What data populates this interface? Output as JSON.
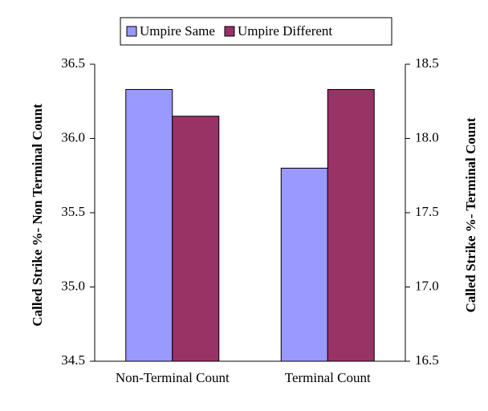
{
  "chart_data": {
    "type": "bar",
    "categories": [
      "Non-Terminal Count",
      "Terminal Count"
    ],
    "category_axes": [
      "y",
      "y2"
    ],
    "series": [
      {
        "name": "Umpire Same",
        "color": "#9999ff",
        "values": [
          36.33,
          17.8
        ]
      },
      {
        "name": "Umpire Different",
        "color": "#993366",
        "values": [
          36.15,
          18.33
        ]
      }
    ],
    "ylabel": "Called Strike %- Non Terminal Count",
    "y2label": "Called Strike %- Terminal Count",
    "ylim": [
      34.5,
      36.5
    ],
    "yticks": [
      {
        "value": 34.5,
        "label": "34.5"
      },
      {
        "value": 35,
        "label": "35.0"
      },
      {
        "value": 35.5,
        "label": "35.5"
      },
      {
        "value": 36,
        "label": "36.0"
      },
      {
        "value": 36.5,
        "label": "36.5"
      }
    ],
    "y2lim": [
      16.5,
      18.5
    ],
    "y2ticks": [
      {
        "value": 16.5,
        "label": "16.5"
      },
      {
        "value": 17,
        "label": "17.0"
      },
      {
        "value": 17.5,
        "label": "17.5"
      },
      {
        "value": 18,
        "label": "18.0"
      },
      {
        "value": 18.5,
        "label": "18.5"
      }
    ],
    "legend": "top"
  }
}
